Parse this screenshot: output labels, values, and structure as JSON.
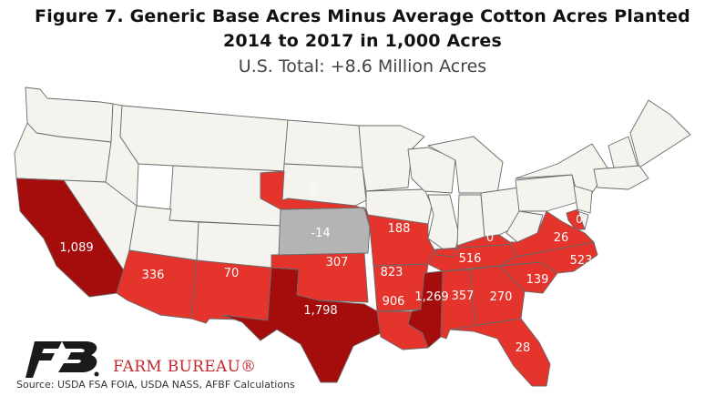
{
  "title_line1": "Figure 7. Generic Base Acres Minus Average Cotton Acres Planted",
  "title_line2": "2014 to 2017 in 1,000 Acres",
  "subtitle": "U.S. Total: +8.6 Million Acres",
  "brand": "FARM BUREAU®",
  "source": "Source: USDA FSA FOIA, USDA NASS, AFBF Calculations",
  "colors": {
    "none": "#f4f3ee",
    "negative": "#b4b4b4",
    "positive": "#e5342c",
    "high": "#a50d0d",
    "border": "#6a6a6a",
    "logo": "#1a1a1a"
  },
  "states": [
    {
      "name": "California",
      "value": "1,089",
      "category": "high"
    },
    {
      "name": "Arizona",
      "value": "336",
      "category": "positive"
    },
    {
      "name": "New Mexico",
      "value": "70",
      "category": "positive"
    },
    {
      "name": "Texas",
      "value": "1,798",
      "category": "high"
    },
    {
      "name": "Oklahoma",
      "value": "307",
      "category": "positive"
    },
    {
      "name": "Kansas",
      "value": "-14",
      "category": "negative"
    },
    {
      "name": "Nebraska",
      "value": "0",
      "category": "positive"
    },
    {
      "name": "Missouri",
      "value": "188",
      "category": "positive"
    },
    {
      "name": "Arkansas",
      "value": "823",
      "category": "positive"
    },
    {
      "name": "Louisiana",
      "value": "906",
      "category": "positive"
    },
    {
      "name": "Mississippi",
      "value": "1,269",
      "category": "high"
    },
    {
      "name": "Alabama",
      "value": "357",
      "category": "positive"
    },
    {
      "name": "Georgia",
      "value": "270",
      "category": "positive"
    },
    {
      "name": "Florida",
      "value": "28",
      "category": "positive"
    },
    {
      "name": "South Carolina",
      "value": "139",
      "category": "positive"
    },
    {
      "name": "North Carolina",
      "value": "523",
      "category": "positive"
    },
    {
      "name": "Tennessee",
      "value": "516",
      "category": "positive"
    },
    {
      "name": "Kentucky",
      "value": "0",
      "category": "positive"
    },
    {
      "name": "Virginia",
      "value": "26",
      "category": "positive"
    },
    {
      "name": "Maryland",
      "value": "0",
      "category": "positive"
    }
  ]
}
